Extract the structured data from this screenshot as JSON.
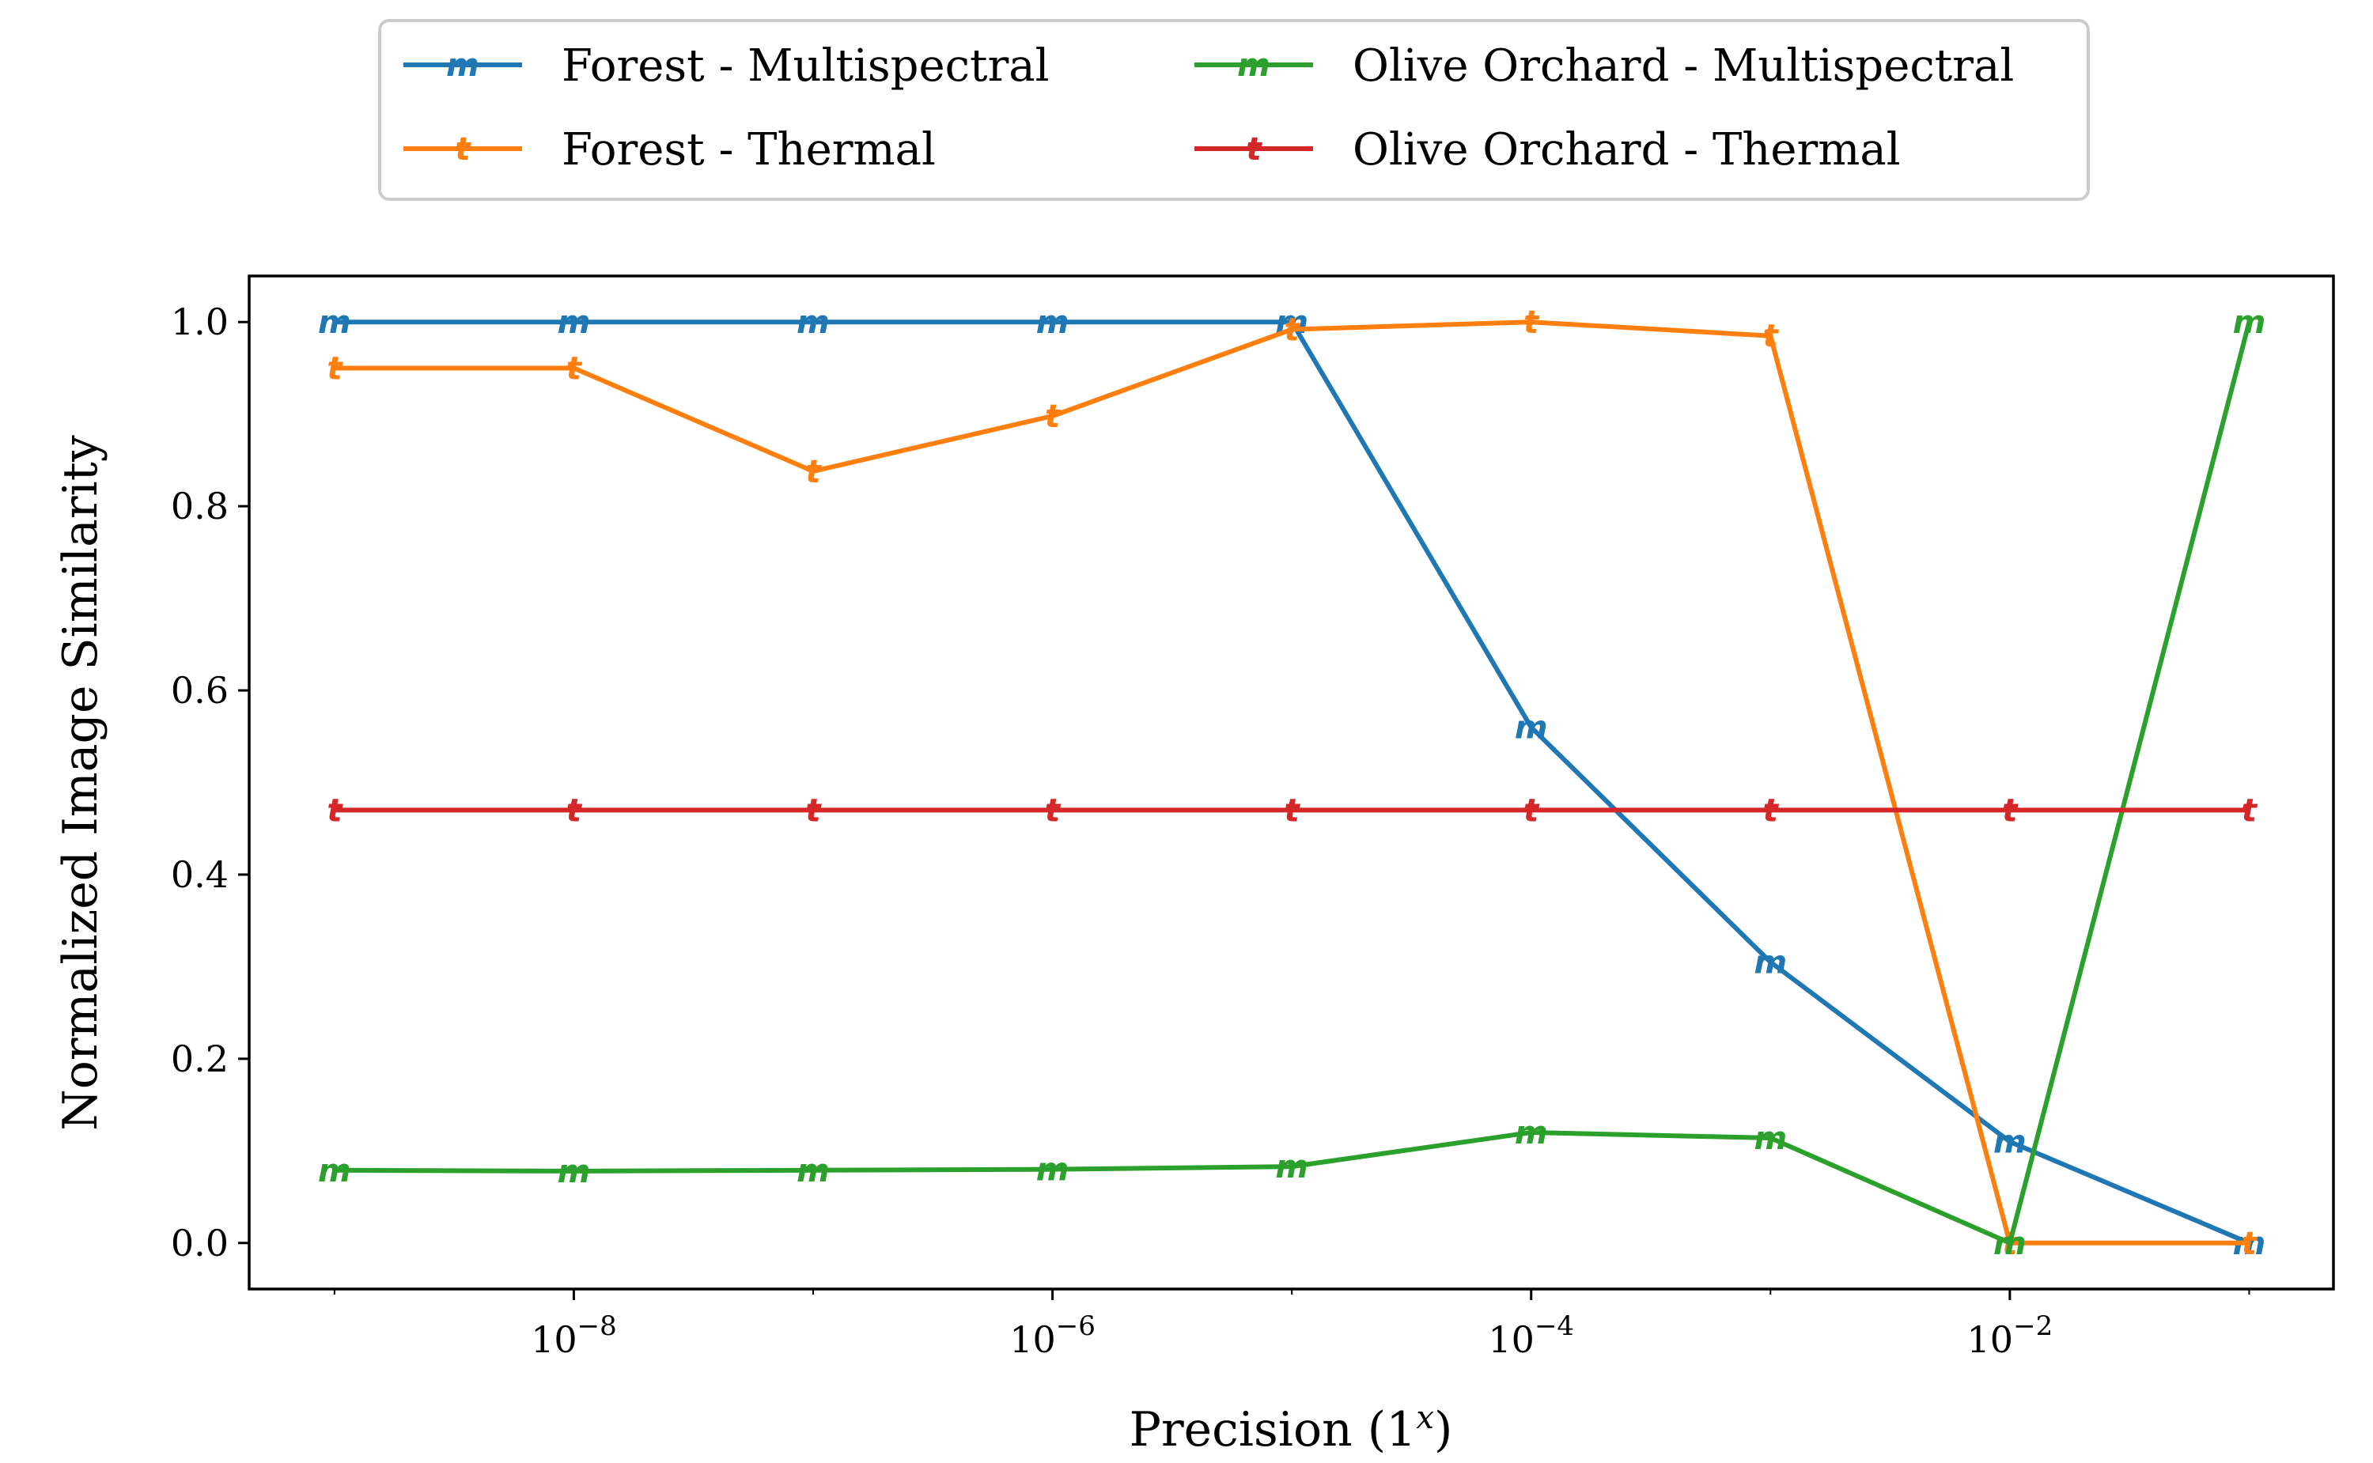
{
  "chart_data": {
    "type": "line",
    "xlabel": "Precision (1",
    "xlabel_sup": "x",
    "xlabel_suffix": ")",
    "ylabel": "Normalized Image Similarity",
    "x_scale": "log",
    "x": [
      1e-09,
      1e-08,
      1e-07,
      1e-06,
      1e-05,
      0.0001,
      0.001,
      0.01,
      0.1
    ],
    "xlim": [
      4.4e-10,
      0.225
    ],
    "ylim": [
      -0.05,
      1.05
    ],
    "x_ticks": [
      {
        "value": 1e-08,
        "base": "10",
        "exp": "−8"
      },
      {
        "value": 1e-06,
        "base": "10",
        "exp": "−6"
      },
      {
        "value": 0.0001,
        "base": "10",
        "exp": "−4"
      },
      {
        "value": 0.01,
        "base": "10",
        "exp": "−2"
      }
    ],
    "y_ticks": [
      "0.0",
      "0.2",
      "0.4",
      "0.6",
      "0.8",
      "1.0"
    ],
    "grid": false,
    "legend_position": "top-center (outside plot)",
    "legend_columns": 2,
    "series": [
      {
        "name": "Forest - Multispectral",
        "marker": "m",
        "color": "#1f77b4",
        "values": [
          1.0,
          1.0,
          1.0,
          1.0,
          1.0,
          0.56,
          0.305,
          0.11,
          0.0
        ]
      },
      {
        "name": "Forest - Thermal",
        "marker": "t",
        "color": "#ff7f0e",
        "values": [
          0.95,
          0.95,
          0.838,
          0.898,
          0.992,
          1.0,
          0.985,
          0.0,
          0.0
        ]
      },
      {
        "name": "Olive Orchard - Multispectral",
        "marker": "m",
        "color": "#2ca02c",
        "values": [
          0.079,
          0.078,
          0.079,
          0.08,
          0.083,
          0.12,
          0.114,
          0.0,
          1.0
        ]
      },
      {
        "name": "Olive Orchard - Thermal",
        "marker": "t",
        "color": "#d62728",
        "values": [
          0.47,
          0.47,
          0.47,
          0.47,
          0.47,
          0.47,
          0.47,
          0.47,
          0.47
        ]
      }
    ]
  }
}
